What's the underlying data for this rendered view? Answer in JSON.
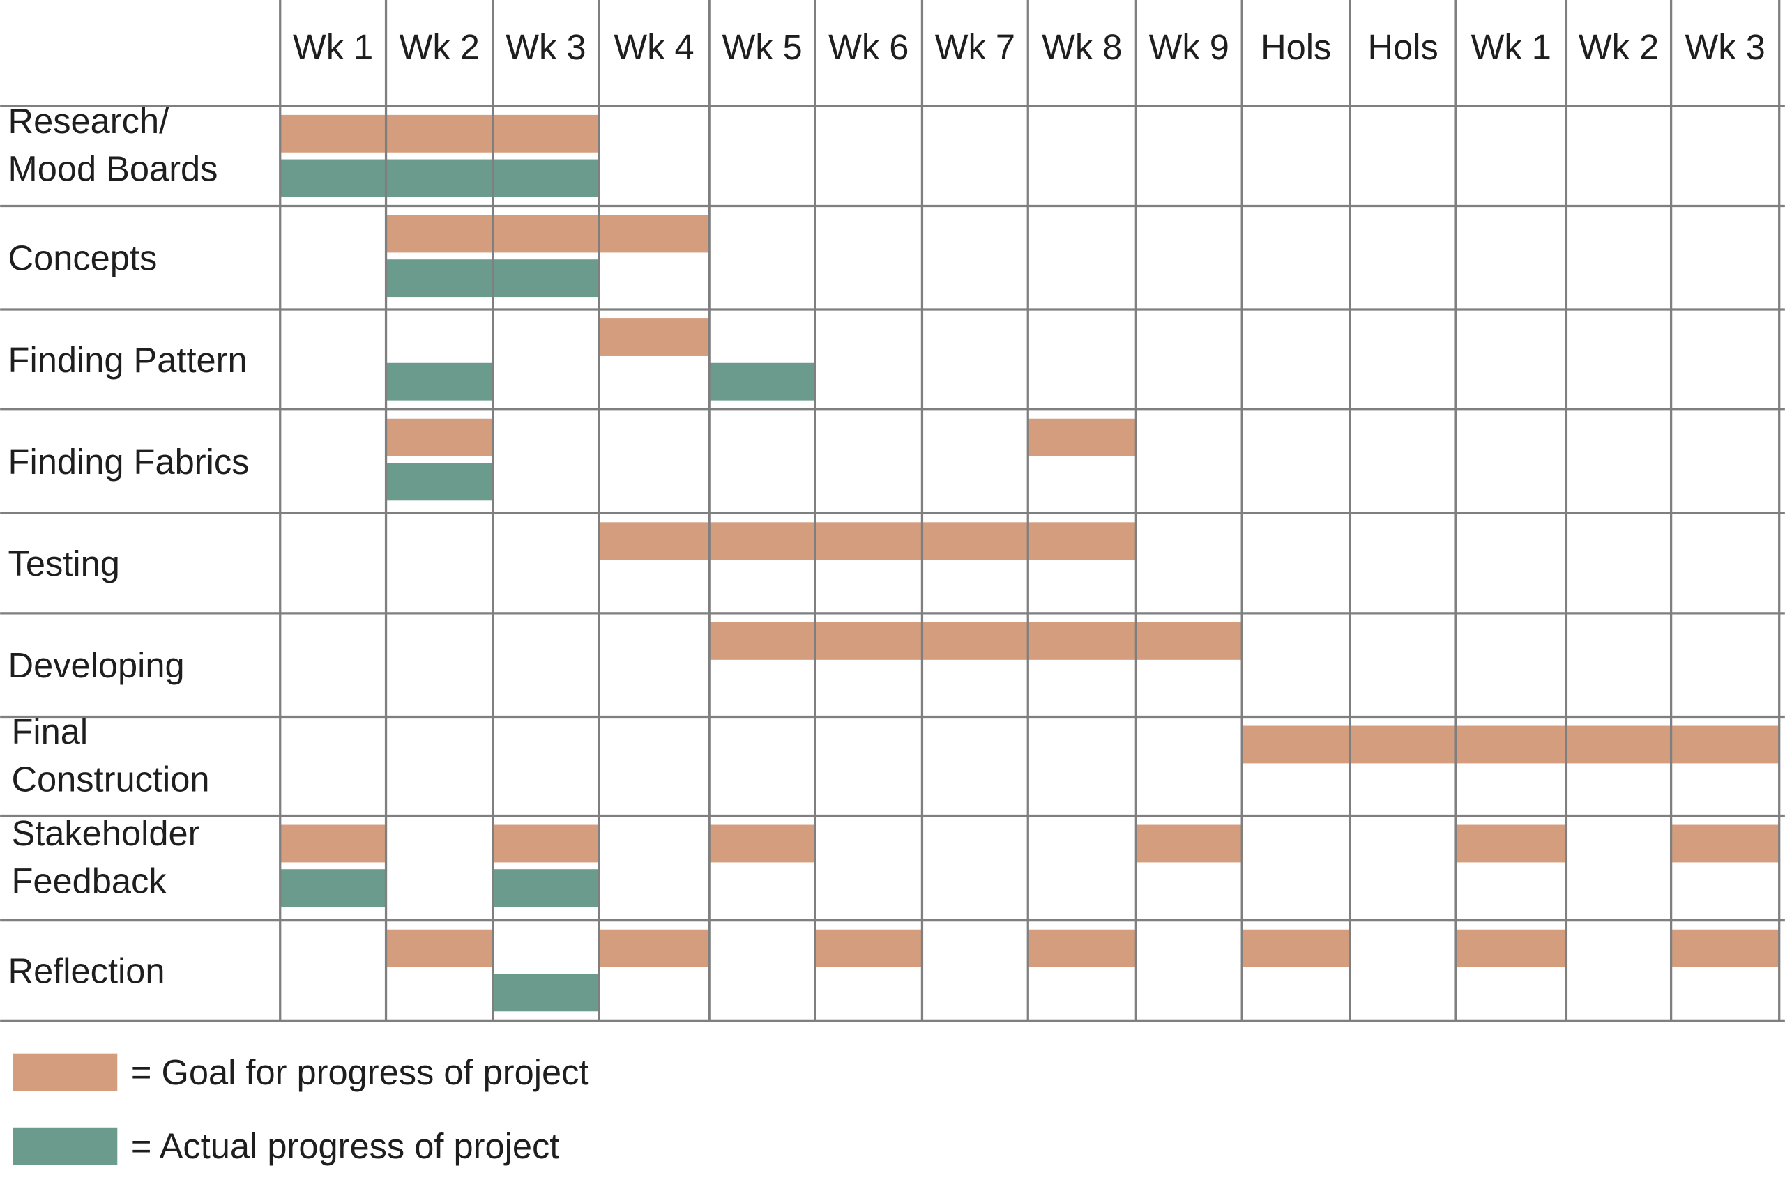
{
  "chart_data": {
    "type": "gantt",
    "title": "",
    "columns": [
      "Wk 1",
      "Wk 2",
      "Wk 3",
      "Wk 4",
      "Wk 5",
      "Wk 6",
      "Wk 7",
      "Wk 8",
      "Wk 9",
      "Hols",
      "Hols",
      "Wk 1",
      "Wk 2",
      "Wk 3"
    ],
    "colors": {
      "goal": "#D49E7E",
      "actual": "#6B9B8D",
      "grid": "#7F7F7F"
    },
    "grid": true,
    "legend_position": "bottom-left",
    "legend": [
      {
        "key": "goal",
        "label": "= Goal for progress of project"
      },
      {
        "key": "actual",
        "label": "= Actual progress of project"
      }
    ],
    "tasks": [
      {
        "label_lines": [
          "Research/",
          "Mood Boards"
        ],
        "goal": [
          0,
          1,
          2
        ],
        "actual": [
          0,
          1,
          2
        ]
      },
      {
        "label_lines": [
          "Concepts"
        ],
        "goal": [
          1,
          2,
          3
        ],
        "actual": [
          1,
          2
        ]
      },
      {
        "label_lines": [
          "Finding Pattern"
        ],
        "goal": [
          3
        ],
        "actual": [
          1,
          4
        ]
      },
      {
        "label_lines": [
          "Finding Fabrics"
        ],
        "goal": [
          1,
          7
        ],
        "actual": [
          1
        ]
      },
      {
        "label_lines": [
          "Testing"
        ],
        "goal": [
          3,
          4,
          5,
          6,
          7
        ],
        "actual": []
      },
      {
        "label_lines": [
          "Developing"
        ],
        "goal": [
          4,
          5,
          6,
          7,
          8
        ],
        "actual": []
      },
      {
        "label_lines": [
          "Final",
          "Construction"
        ],
        "goal": [
          9,
          10,
          11,
          12,
          13
        ],
        "actual": []
      },
      {
        "label_lines": [
          "Stakeholder",
          "Feedback"
        ],
        "goal": [
          0,
          2,
          4,
          8,
          11,
          13
        ],
        "actual": [
          0,
          2
        ]
      },
      {
        "label_lines": [
          "Reflection"
        ],
        "goal": [
          1,
          3,
          5,
          7,
          9,
          11,
          13
        ],
        "actual": [
          2
        ]
      }
    ]
  }
}
